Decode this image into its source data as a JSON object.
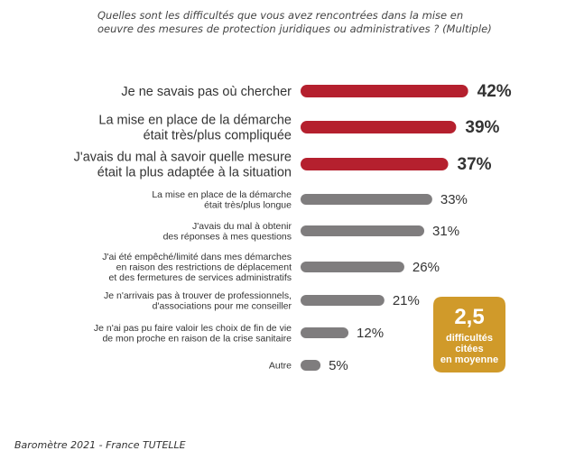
{
  "chart_data": {
    "type": "bar",
    "orientation": "horizontal",
    "title": "Quelles sont les difficultés que vous avez rencontrées dans la mise en oeuvre des mesures de protection juridiques ou administratives ? (Multiple)",
    "categories": [
      "Je ne savais pas où chercher",
      "La mise en place de la démarche était très/plus compliquée",
      "J'avais du mal à savoir quelle mesure était la plus adaptée à la situation",
      "La mise en place de la démarche était très/plus longue",
      "J'avais du mal à obtenir des réponses à mes questions",
      "J'ai été empêché/limité dans mes démarches en raison des restrictions de déplacement et des fermetures de services administratifs",
      "Je n'arrivais pas à trouver de professionnels, d'associations pour me conseiller",
      "Je n'ai pas pu faire valoir les choix de fin de vie de mon proche en raison de la crise sanitaire",
      "Autre"
    ],
    "category_lines": [
      [
        "Je ne savais pas où chercher"
      ],
      [
        "La mise en place de la démarche",
        "était très/plus compliquée"
      ],
      [
        "J'avais du mal à savoir quelle mesure",
        "était la plus adaptée à la situation"
      ],
      [
        "La mise en place de la démarche",
        "était très/plus longue"
      ],
      [
        "J'avais du mal à obtenir",
        "des réponses à mes questions"
      ],
      [
        "J'ai été empêché/limité dans mes démarches",
        "en raison des restrictions de déplacement",
        "et des fermetures de services administratifs"
      ],
      [
        "Je n'arrivais pas à trouver de professionnels,",
        "d'associations pour me conseiller"
      ],
      [
        "Je n'ai pas pu faire valoir les choix de fin de vie",
        "de mon proche en raison de la crise sanitaire"
      ],
      [
        "Autre"
      ]
    ],
    "values": [
      42,
      39,
      37,
      33,
      31,
      26,
      21,
      12,
      5
    ],
    "value_labels": [
      "42%",
      "39%",
      "37%",
      "33%",
      "31%",
      "26%",
      "21%",
      "12%",
      "5%"
    ],
    "highlight_count": 3,
    "colors": {
      "highlight": "#b5202e",
      "default": "#7f7d7e",
      "badge": "#d09a2a"
    }
  },
  "badge": {
    "value": "2,5",
    "lines": [
      "difficultés",
      "citées",
      "en moyenne"
    ]
  },
  "source": "Baromètre 2021 - France TUTELLE"
}
